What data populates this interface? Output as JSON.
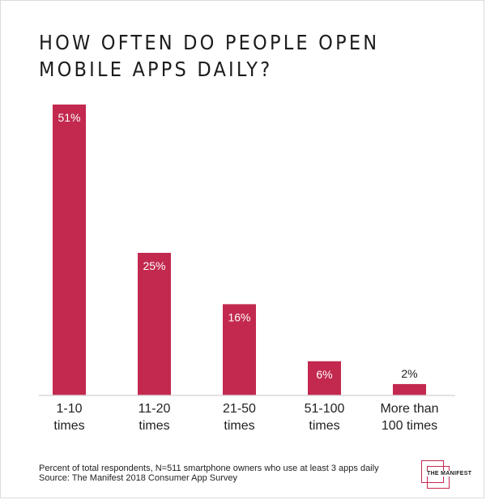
{
  "title": "HOW OFTEN DO PEOPLE OPEN MOBILE APPS DAILY?",
  "chart_data": {
    "type": "bar",
    "title": "HOW OFTEN DO PEOPLE OPEN MOBILE APPS DAILY?",
    "categories": [
      [
        "1-10",
        "times"
      ],
      [
        "11-20",
        "times"
      ],
      [
        "21-50",
        "times"
      ],
      [
        "51-100",
        "times"
      ],
      [
        "More than",
        "100 times"
      ]
    ],
    "values": [
      51,
      25,
      16,
      6,
      2
    ],
    "labels": [
      "51%",
      "25%",
      "16%",
      "6%",
      "2%"
    ],
    "ylim": [
      0,
      51
    ],
    "xlabel": "",
    "ylabel": "",
    "grid": false,
    "bar_color": "#c3294f"
  },
  "footnote": {
    "line1": "Percent of total respondents, N=511 smartphone owners who use at least 3 apps daily",
    "line2": "Source: The Manifest 2018 Consumer App Survey"
  },
  "logo": {
    "text": "THE MANIFEST",
    "color": "#c3294f"
  }
}
